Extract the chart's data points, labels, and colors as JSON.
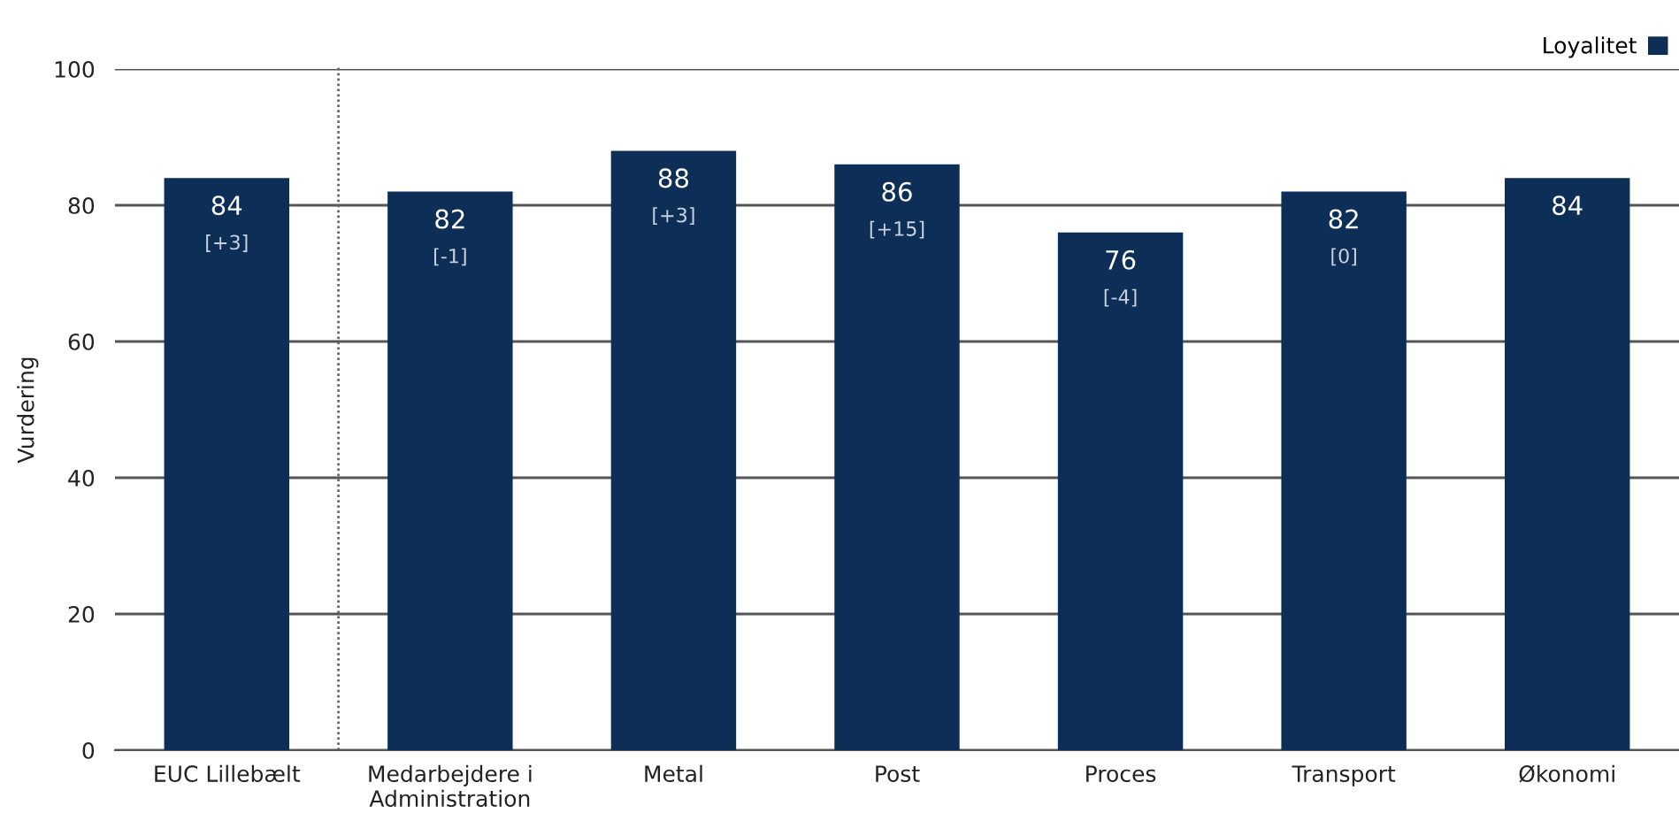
{
  "chart_data": {
    "type": "bar",
    "ylabel": "Vurdering",
    "categories": [
      "EUC Lillebælt",
      "Medarbejdere i\nAdministration",
      "Metal",
      "Post",
      "Proces",
      "Transport",
      "Økonomi"
    ],
    "series": [
      {
        "name": "Loyalitet",
        "color": "#0d2e56",
        "values": [
          84,
          82,
          88,
          86,
          76,
          82,
          84
        ],
        "value_labels": [
          "84\n[+3]",
          "82\n[-1]",
          "88\n[+3]",
          "86\n[+15]",
          "76\n[-4]",
          "82\n[0]",
          "84"
        ]
      }
    ],
    "ylim": [
      0,
      100
    ],
    "yticks": [
      0,
      20,
      40,
      60,
      80,
      100
    ],
    "grid": "y",
    "legend": "top right"
  }
}
